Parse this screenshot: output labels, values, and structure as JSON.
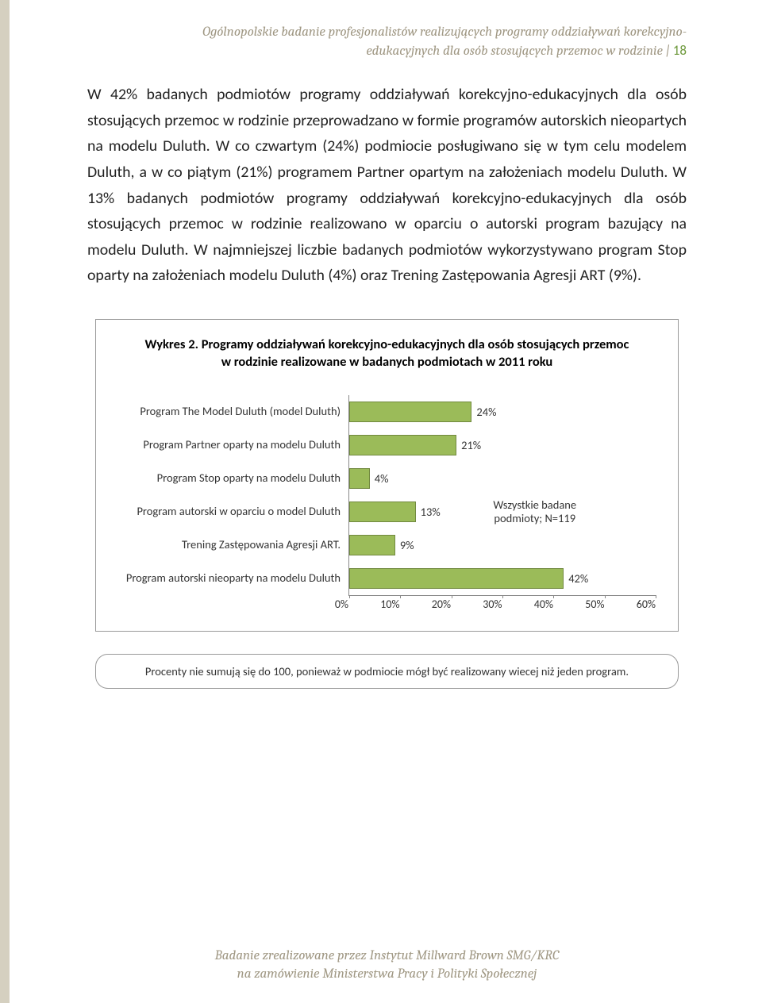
{
  "header": {
    "line1": "Ogólnopolskie badanie profesjonalistów realizujących programy oddziaływań korekcyjno-",
    "line2": "edukacyjnych dla osób stosujących przemoc w rodzinie",
    "separator": " | ",
    "page_number": "18"
  },
  "body": {
    "paragraph": "W 42% badanych podmiotów programy oddziaływań korekcyjno-edukacyjnych dla osób stosujących przemoc w rodzinie przeprowadzano w formie programów autorskich nieopartych na modelu Duluth. W co czwartym (24%) podmiocie posługiwano się w tym celu modelem Duluth, a w co piątym (21%) programem Partner opartym na założeniach modelu Duluth. W 13% badanych podmiotów programy oddziaływań korekcyjno-edukacyjnych dla osób stosujących przemoc w rodzinie realizowano w oparciu o autorski program bazujący na modelu Duluth. W najmniejszej liczbie badanych podmiotów wykorzystywano program Stop oparty na założeniach modelu Duluth (4%) oraz Trening Zastępowania Agresji ART (9%)."
  },
  "chart": {
    "type": "bar",
    "title": "Wykres 2. Programy oddziaływań korekcyjno-edukacyjnych dla osób stosujących przemoc w rodzinie realizowane w badanych podmiotach w 2011 roku",
    "categories": [
      "Program The Model Duluth (model Duluth)",
      "Program Partner oparty na modelu Duluth",
      "Program Stop oparty na modelu Duluth",
      "Program autorski w oparciu o model Duluth",
      "Trening Zastępowania Agresji ART.",
      "Program autorski nieoparty na modelu Duluth"
    ],
    "values": [
      24,
      21,
      4,
      13,
      9,
      42
    ],
    "value_labels": [
      "24%",
      "21%",
      "4%",
      "13%",
      "9%",
      "42%"
    ],
    "bar_fill": "#9bbb59",
    "bar_border": "#71893f",
    "xlim": [
      0,
      60
    ],
    "xtick_step": 10,
    "xtick_labels": [
      "0%",
      "10%",
      "20%",
      "30%",
      "40%",
      "50%",
      "60%"
    ],
    "legend_text_line1": "Wszystkie badane",
    "legend_text_line2": "podmioty;  N=119"
  },
  "footnote": "Procenty nie sumują  się do 100, ponieważ w podmiocie mógł być realizowany wiecej niż jeden program.",
  "footer": {
    "line1": "Badanie zrealizowane przez Instytut Millward Brown SMG/KRC",
    "line2": "na zamówienie Ministerstwa Pracy i Polityki Społecznej"
  }
}
